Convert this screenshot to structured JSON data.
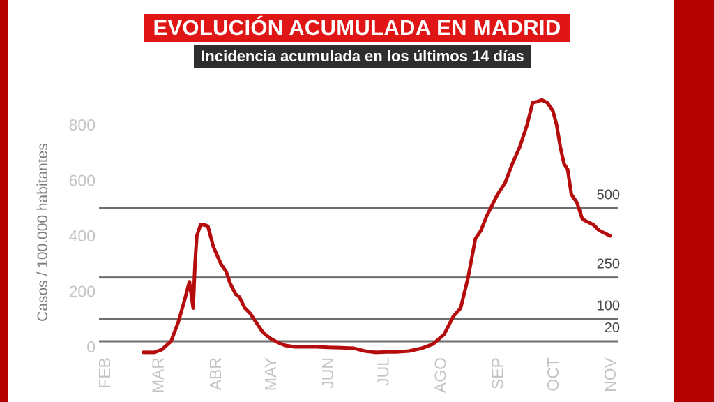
{
  "chart_data": {
    "type": "line",
    "title": "EVOLUCIÓN ACUMULADA EN MADRID",
    "subtitle": "Incidencia acumulada en los últimos 14 días",
    "ylabel": "Casos / 100.000 habitantes",
    "ylim": [
      0,
      900
    ],
    "xlim": [
      "2020-02-01",
      "2020-11-01"
    ],
    "y_ticks": [
      0,
      200,
      400,
      600,
      800
    ],
    "x_ticks": [
      {
        "date": "2020-02-01",
        "label": "FEB"
      },
      {
        "date": "2020-03-01",
        "label": "MAR"
      },
      {
        "date": "2020-04-01",
        "label": "ABR"
      },
      {
        "date": "2020-05-01",
        "label": "MAY"
      },
      {
        "date": "2020-06-01",
        "label": "JUN"
      },
      {
        "date": "2020-07-01",
        "label": "JUL"
      },
      {
        "date": "2020-08-01",
        "label": "AGO"
      },
      {
        "date": "2020-09-01",
        "label": "SEP"
      },
      {
        "date": "2020-10-01",
        "label": "OCT"
      },
      {
        "date": "2020-11-01",
        "label": "NOV"
      }
    ],
    "thresholds": [
      {
        "value": 500,
        "label": "500"
      },
      {
        "value": 250,
        "label": "250"
      },
      {
        "value": 100,
        "label": "100"
      },
      {
        "value": 20,
        "label": "20"
      }
    ],
    "series": [
      {
        "color": "#b50d0d",
        "x": [
          "2020-02-22",
          "2020-02-28",
          "2020-03-03",
          "2020-03-08",
          "2020-03-12",
          "2020-03-15",
          "2020-03-18",
          "2020-03-20",
          "2020-03-21",
          "2020-03-22",
          "2020-03-24",
          "2020-03-26",
          "2020-03-28",
          "2020-03-31",
          "2020-04-04",
          "2020-04-07",
          "2020-04-09",
          "2020-04-12",
          "2020-04-14",
          "2020-04-17",
          "2020-04-20",
          "2020-04-22",
          "2020-04-26",
          "2020-04-28",
          "2020-05-01",
          "2020-05-05",
          "2020-05-09",
          "2020-05-14",
          "2020-05-20",
          "2020-05-26",
          "2020-06-01",
          "2020-06-08",
          "2020-06-15",
          "2020-06-21",
          "2020-06-27",
          "2020-07-03",
          "2020-07-08",
          "2020-07-15",
          "2020-07-22",
          "2020-07-28",
          "2020-08-03",
          "2020-08-08",
          "2020-08-12",
          "2020-08-16",
          "2020-08-20",
          "2020-08-23",
          "2020-08-26",
          "2020-08-29",
          "2020-09-01",
          "2020-09-05",
          "2020-09-09",
          "2020-09-13",
          "2020-09-17",
          "2020-09-20",
          "2020-09-23",
          "2020-09-25",
          "2020-09-28",
          "2020-10-01",
          "2020-10-03",
          "2020-10-05",
          "2020-10-07",
          "2020-10-09",
          "2020-10-11",
          "2020-10-14",
          "2020-10-17",
          "2020-10-20",
          "2020-10-23",
          "2020-10-26",
          "2020-10-29",
          "2020-11-01"
        ],
        "values": [
          -20,
          -20,
          -10,
          20,
          90,
          160,
          235,
          140,
          300,
          400,
          440,
          440,
          435,
          360,
          300,
          270,
          230,
          190,
          180,
          140,
          120,
          100,
          60,
          45,
          30,
          15,
          5,
          0,
          0,
          0,
          -2,
          -3,
          -5,
          -15,
          -20,
          -18,
          -18,
          -15,
          -5,
          10,
          45,
          110,
          140,
          250,
          390,
          420,
          470,
          510,
          550,
          590,
          660,
          720,
          800,
          880,
          885,
          890,
          880,
          850,
          800,
          720,
          660,
          640,
          550,
          520,
          460,
          450,
          440,
          420,
          410,
          400
        ]
      }
    ]
  }
}
